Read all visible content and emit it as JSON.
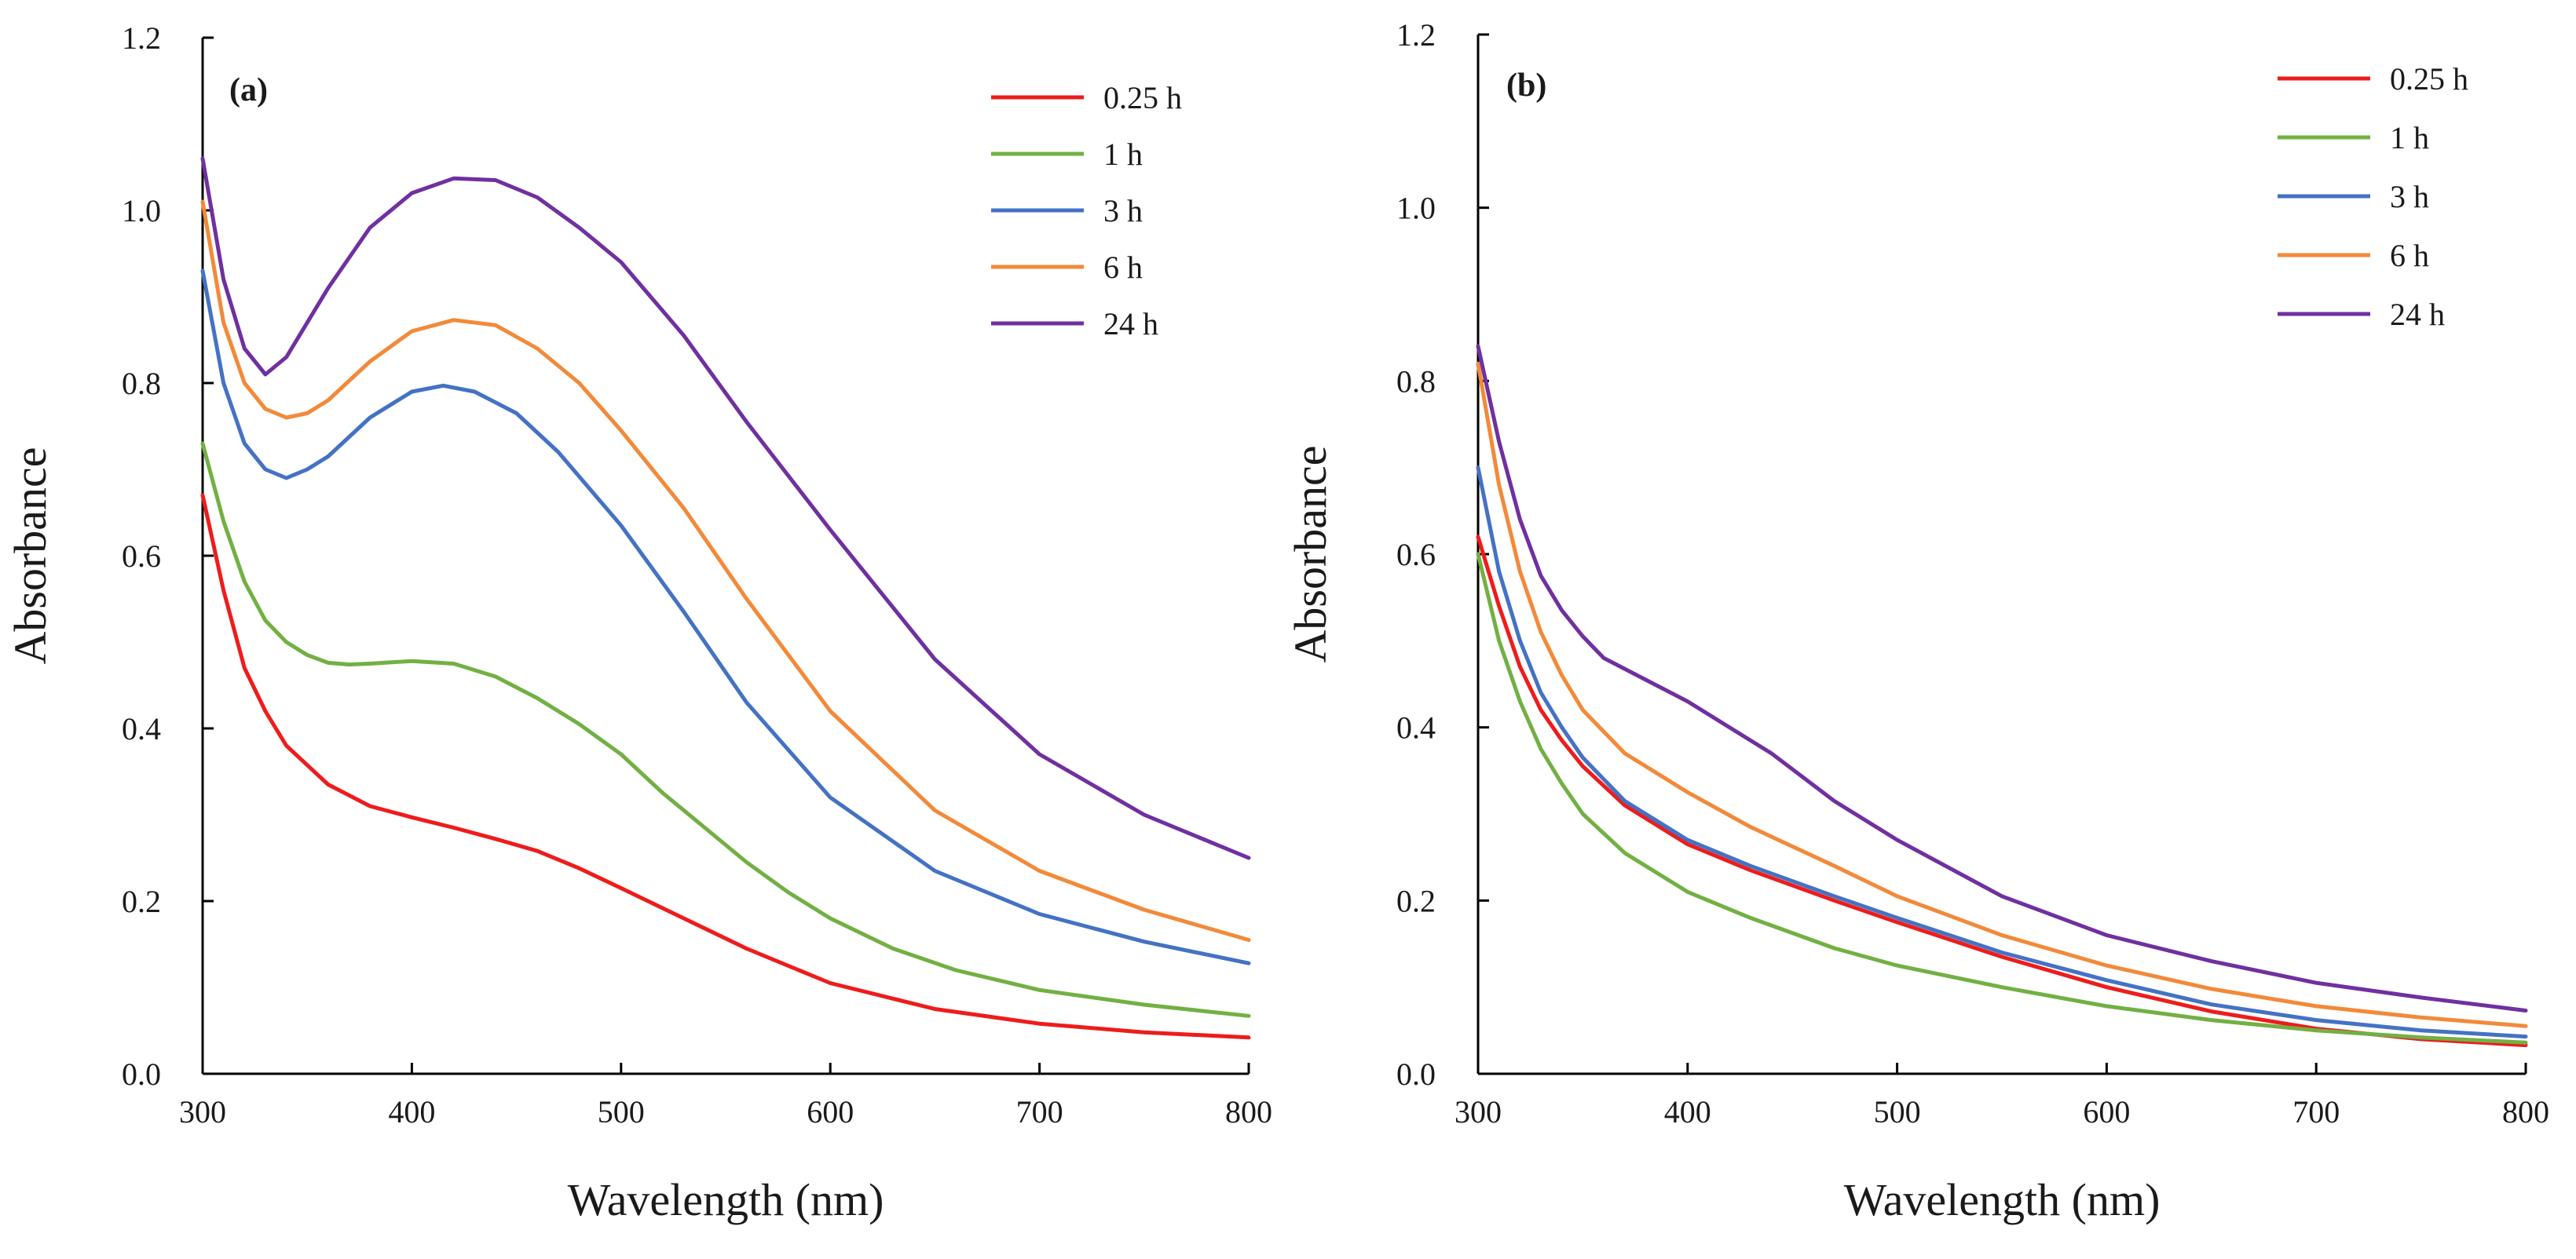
{
  "chart_data": [
    {
      "type": "line",
      "panel_label": "(a)",
      "xlabel": "Wavelength (nm)",
      "ylabel": "Absorbance",
      "xlim": [
        300,
        800
      ],
      "ylim": [
        0,
        1.2
      ],
      "xticks": [
        300,
        400,
        500,
        600,
        700,
        800
      ],
      "xtick_labels": [
        "300",
        "400",
        "500",
        "600",
        "700",
        "800"
      ],
      "yticks": [
        0,
        0.2,
        0.4,
        0.6,
        0.8,
        1.0,
        1.2
      ],
      "ytick_labels": [
        "0.0",
        "0.2",
        "0.4",
        "0.6",
        "0.8",
        "1.0",
        "1.2"
      ],
      "grid": false,
      "legend_position": "top-right",
      "series": [
        {
          "name": "0.25 h",
          "color": "#ee1c1c",
          "x": [
            300,
            310,
            320,
            330,
            340,
            360,
            380,
            400,
            420,
            440,
            460,
            480,
            500,
            530,
            560,
            600,
            650,
            700,
            750,
            800
          ],
          "y": [
            0.67,
            0.56,
            0.47,
            0.42,
            0.38,
            0.335,
            0.31,
            0.297,
            0.285,
            0.272,
            0.258,
            0.238,
            0.215,
            0.18,
            0.145,
            0.105,
            0.075,
            0.058,
            0.048,
            0.042
          ]
        },
        {
          "name": "1 h",
          "color": "#72b043",
          "x": [
            300,
            310,
            320,
            330,
            340,
            350,
            360,
            370,
            380,
            400,
            420,
            440,
            460,
            480,
            500,
            520,
            540,
            560,
            580,
            600,
            630,
            660,
            700,
            750,
            800
          ],
          "y": [
            0.73,
            0.64,
            0.57,
            0.525,
            0.5,
            0.485,
            0.476,
            0.474,
            0.475,
            0.478,
            0.475,
            0.46,
            0.435,
            0.405,
            0.37,
            0.325,
            0.285,
            0.245,
            0.21,
            0.18,
            0.145,
            0.12,
            0.097,
            0.08,
            0.067
          ]
        },
        {
          "name": "3 h",
          "color": "#4472c4",
          "x": [
            300,
            310,
            320,
            330,
            340,
            350,
            360,
            380,
            400,
            415,
            430,
            450,
            470,
            500,
            530,
            560,
            600,
            650,
            700,
            750,
            800
          ],
          "y": [
            0.93,
            0.8,
            0.73,
            0.7,
            0.69,
            0.7,
            0.715,
            0.76,
            0.79,
            0.797,
            0.79,
            0.765,
            0.72,
            0.635,
            0.535,
            0.43,
            0.32,
            0.235,
            0.185,
            0.153,
            0.128
          ]
        },
        {
          "name": "6 h",
          "color": "#f28a3a",
          "x": [
            300,
            310,
            320,
            330,
            340,
            350,
            360,
            380,
            400,
            420,
            440,
            460,
            480,
            500,
            530,
            560,
            600,
            650,
            700,
            750,
            800
          ],
          "y": [
            1.01,
            0.87,
            0.8,
            0.77,
            0.76,
            0.765,
            0.78,
            0.825,
            0.86,
            0.873,
            0.867,
            0.84,
            0.8,
            0.745,
            0.655,
            0.55,
            0.42,
            0.305,
            0.235,
            0.19,
            0.155
          ]
        },
        {
          "name": "24 h",
          "color": "#7030a0",
          "x": [
            300,
            310,
            320,
            330,
            340,
            350,
            360,
            380,
            400,
            420,
            440,
            460,
            480,
            500,
            530,
            560,
            600,
            650,
            700,
            750,
            800
          ],
          "y": [
            1.06,
            0.92,
            0.84,
            0.81,
            0.83,
            0.87,
            0.91,
            0.98,
            1.02,
            1.037,
            1.035,
            1.015,
            0.98,
            0.94,
            0.855,
            0.755,
            0.63,
            0.48,
            0.37,
            0.3,
            0.25
          ]
        }
      ]
    },
    {
      "type": "line",
      "panel_label": "(b)",
      "xlabel": "Wavelength (nm)",
      "ylabel": "Absorbance",
      "xlim": [
        300,
        800
      ],
      "ylim": [
        0,
        1.2
      ],
      "xticks": [
        300,
        400,
        500,
        600,
        700,
        800
      ],
      "xtick_labels": [
        "300",
        "400",
        "500",
        "600",
        "700",
        "800"
      ],
      "yticks": [
        0,
        0.2,
        0.4,
        0.6,
        0.8,
        1.0,
        1.2
      ],
      "ytick_labels": [
        "0.0",
        "0.2",
        "0.4",
        "0.6",
        "0.8",
        "1.0",
        "1.2"
      ],
      "grid": false,
      "legend_position": "top-right",
      "series": [
        {
          "name": "0.25 h",
          "color": "#ee1c1c",
          "x": [
            300,
            310,
            320,
            330,
            340,
            350,
            370,
            400,
            430,
            470,
            500,
            550,
            600,
            650,
            700,
            750,
            800
          ],
          "y": [
            0.62,
            0.54,
            0.47,
            0.42,
            0.385,
            0.355,
            0.31,
            0.265,
            0.235,
            0.2,
            0.175,
            0.135,
            0.1,
            0.072,
            0.052,
            0.04,
            0.033
          ]
        },
        {
          "name": "1 h",
          "color": "#72b043",
          "x": [
            300,
            310,
            320,
            330,
            340,
            350,
            370,
            400,
            430,
            470,
            500,
            550,
            600,
            650,
            700,
            750,
            800
          ],
          "y": [
            0.6,
            0.5,
            0.43,
            0.375,
            0.335,
            0.3,
            0.255,
            0.21,
            0.18,
            0.145,
            0.125,
            0.1,
            0.078,
            0.062,
            0.05,
            0.042,
            0.036
          ]
        },
        {
          "name": "3 h",
          "color": "#4472c4",
          "x": [
            300,
            310,
            320,
            330,
            340,
            350,
            370,
            400,
            430,
            470,
            500,
            550,
            600,
            650,
            700,
            750,
            800
          ],
          "y": [
            0.7,
            0.58,
            0.5,
            0.44,
            0.4,
            0.365,
            0.315,
            0.27,
            0.24,
            0.205,
            0.18,
            0.14,
            0.108,
            0.08,
            0.062,
            0.05,
            0.043
          ]
        },
        {
          "name": "6 h",
          "color": "#f28a3a",
          "x": [
            300,
            310,
            320,
            330,
            340,
            350,
            370,
            400,
            430,
            470,
            500,
            550,
            600,
            650,
            700,
            750,
            800
          ],
          "y": [
            0.82,
            0.68,
            0.58,
            0.51,
            0.46,
            0.42,
            0.37,
            0.325,
            0.285,
            0.24,
            0.205,
            0.16,
            0.125,
            0.098,
            0.078,
            0.065,
            0.055
          ]
        },
        {
          "name": "24 h",
          "color": "#7030a0",
          "x": [
            300,
            310,
            320,
            330,
            340,
            350,
            360,
            380,
            400,
            420,
            440,
            470,
            500,
            550,
            600,
            650,
            700,
            750,
            800
          ],
          "y": [
            0.84,
            0.73,
            0.64,
            0.575,
            0.535,
            0.505,
            0.48,
            0.455,
            0.43,
            0.4,
            0.37,
            0.315,
            0.27,
            0.205,
            0.16,
            0.13,
            0.105,
            0.088,
            0.073
          ]
        }
      ]
    }
  ]
}
